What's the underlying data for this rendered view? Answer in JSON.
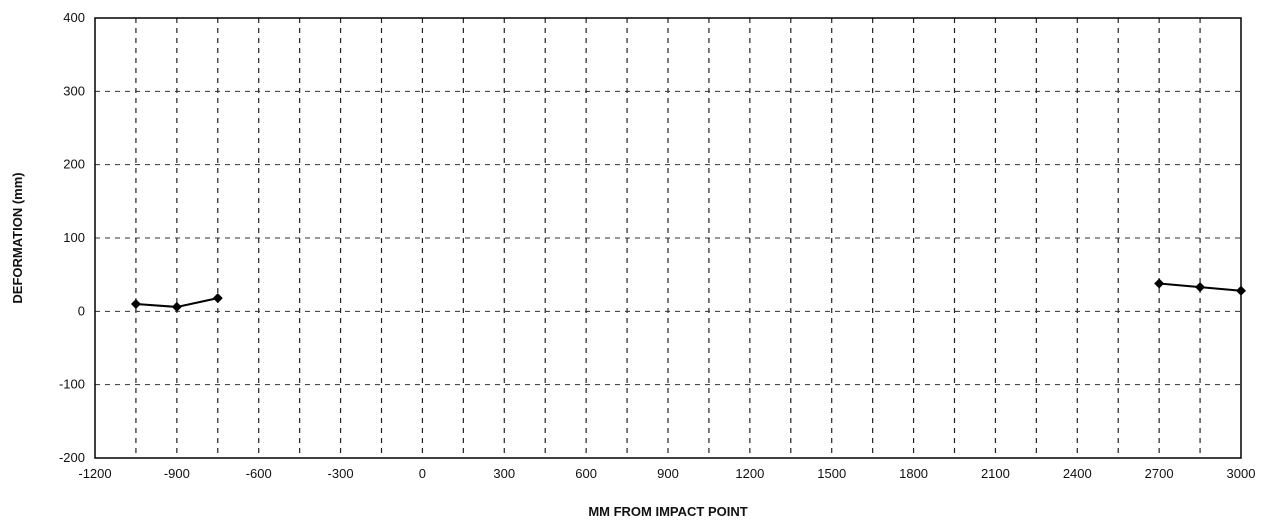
{
  "chart_data": {
    "type": "line",
    "title": "",
    "xlabel": "MM FROM IMPACT POINT",
    "ylabel": "DEFORMATION (mm)",
    "xlim": [
      -1200,
      3000
    ],
    "ylim": [
      -200,
      400
    ],
    "x_ticks": [
      -1200,
      -900,
      -600,
      -300,
      0,
      300,
      600,
      900,
      1200,
      1500,
      1800,
      2100,
      2400,
      2700,
      3000
    ],
    "y_ticks": [
      -200,
      -100,
      0,
      100,
      200,
      300,
      400
    ],
    "x_tick_labels": [
      "-1200",
      "-900",
      "-600",
      "-300",
      "0",
      "300",
      "600",
      "900",
      "1200",
      "1500",
      "1800",
      "2100",
      "2400",
      "2700",
      "3000"
    ],
    "y_tick_labels": [
      "-200",
      "-100",
      "0",
      "100",
      "200",
      "300",
      "400"
    ],
    "grid": true,
    "grid_style": "dashed",
    "marker": "diamond",
    "line_color": "#000000",
    "series_segments": [
      {
        "points": [
          {
            "x": -1050,
            "y": 10
          },
          {
            "x": -900,
            "y": 6
          },
          {
            "x": -750,
            "y": 18
          }
        ]
      },
      {
        "points": [
          {
            "x": 2700,
            "y": 38
          },
          {
            "x": 2850,
            "y": 33
          },
          {
            "x": 3000,
            "y": 28
          }
        ]
      }
    ]
  }
}
